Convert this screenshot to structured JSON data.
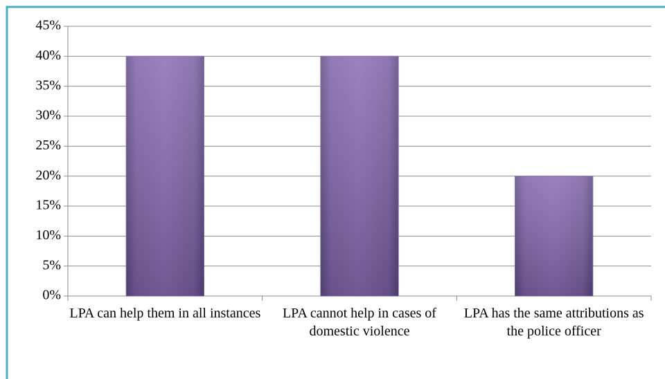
{
  "chart_data": {
    "type": "bar",
    "categories": [
      "LPA can help them in all instances",
      "LPA cannot help in cases of domestic violence",
      "LPA has the same attributions as the police officer"
    ],
    "values": [
      40,
      40,
      20
    ],
    "color": "#8064a2",
    "ylim": [
      0,
      45
    ],
    "yticks": [
      {
        "value": 0,
        "label": "0%"
      },
      {
        "value": 5,
        "label": "5%"
      },
      {
        "value": 10,
        "label": "10%"
      },
      {
        "value": 15,
        "label": "15%"
      },
      {
        "value": 20,
        "label": "20%"
      },
      {
        "value": 25,
        "label": "25%"
      },
      {
        "value": 30,
        "label": "30%"
      },
      {
        "value": 35,
        "label": "35%"
      },
      {
        "value": 40,
        "label": "40%"
      },
      {
        "value": 45,
        "label": "45%"
      }
    ],
    "grid": true
  }
}
